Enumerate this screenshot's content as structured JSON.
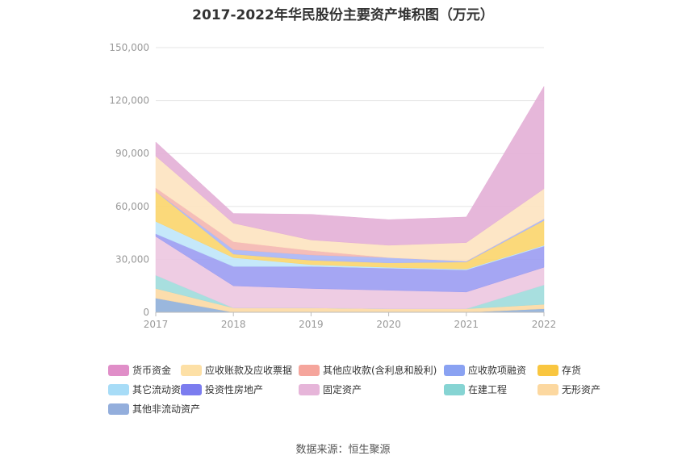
{
  "title": "2017-2022年华民股份主要资产堆积图（万元）",
  "source": "数据来源：恒生聚源",
  "chart_data": {
    "type": "area",
    "stacked": true,
    "title": "2017-2022年华民股份主要资产堆积图（万元）",
    "x": [
      "2017",
      "2018",
      "2019",
      "2020",
      "2021",
      "2022"
    ],
    "ylim": [
      0,
      150000
    ],
    "yticks": [
      0,
      30000,
      60000,
      90000,
      120000,
      150000
    ],
    "ytick_labels": [
      "0",
      "30,000",
      "60,000",
      "90,000",
      "120,000",
      "150,000"
    ],
    "grid": true,
    "legend_position": "bottom",
    "series": [
      {
        "name": "其他非流动资产",
        "color": "#8fafd9",
        "values": [
          8000,
          0,
          0,
          0,
          0,
          2000
        ]
      },
      {
        "name": "无形资产",
        "color": "#fcd9a3",
        "values": [
          5500,
          2500,
          2500,
          2000,
          2000,
          2500
        ]
      },
      {
        "name": "在建工程",
        "color": "#9fdcdb",
        "values": [
          7500,
          0,
          0,
          0,
          0,
          11000
        ]
      },
      {
        "name": "固定资产",
        "color": "#ecc6e0",
        "values": [
          22000,
          12500,
          11000,
          10500,
          9500,
          10000
        ]
      },
      {
        "name": "投资性房地产",
        "color": "#9b9cf2",
        "values": [
          1500,
          11000,
          12500,
          12500,
          12500,
          12000
        ]
      },
      {
        "name": "其它流动资产",
        "color": "#bfe5fa",
        "values": [
          7000,
          5000,
          1000,
          500,
          500,
          500
        ]
      },
      {
        "name": "存货",
        "color": "#fbd56b",
        "values": [
          17000,
          2000,
          2500,
          2500,
          4000,
          14000
        ]
      },
      {
        "name": "应收款项融资",
        "color": "#a9b5f5",
        "values": [
          0,
          2500,
          3000,
          3000,
          500,
          1000
        ]
      },
      {
        "name": "其他应收款(含利息和股利)",
        "color": "#f4b6b0",
        "values": [
          2000,
          4500,
          2500,
          0,
          0,
          0
        ]
      },
      {
        "name": "应收账款及应收票据",
        "color": "#fde3c0",
        "values": [
          18000,
          10500,
          6000,
          7000,
          10500,
          17000
        ]
      },
      {
        "name": "货币资金",
        "color": "#e3afd6",
        "values": [
          8000,
          5500,
          14500,
          14500,
          14500,
          58000
        ]
      }
    ]
  },
  "legend": [
    {
      "label": "货币资金",
      "color": "#e08ec8"
    },
    {
      "label": "应收账款及应收票据",
      "color": "#fde0a6"
    },
    {
      "label": "其他应收款(含利息和股利)",
      "color": "#f5a59c"
    },
    {
      "label": "应收款项融资",
      "color": "#8aa2f2"
    },
    {
      "label": "存货",
      "color": "#f9c640"
    },
    {
      "label": "其它流动资产",
      "color": "#a7dcf7"
    },
    {
      "label": "投资性房地产",
      "color": "#7b7cef"
    },
    {
      "label": "固定资产",
      "color": "#e6b5d9"
    },
    {
      "label": "在建工程",
      "color": "#86d4d3"
    },
    {
      "label": "无形资产",
      "color": "#fcd8a0"
    },
    {
      "label": "其他非流动资产",
      "color": "#93aedc"
    }
  ]
}
